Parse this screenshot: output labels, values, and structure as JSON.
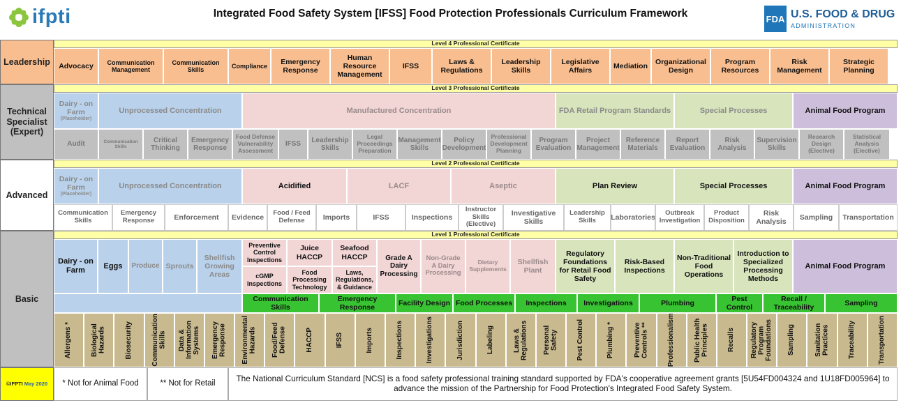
{
  "header": {
    "logo_left": "ifpti",
    "title": "Integrated Food Safety System [IFSS] Food Protection Professionals Curriculum Framework",
    "fda_box": "FDA",
    "fda_line1": "U.S. FOOD & DRUG",
    "fda_line2": "ADMINISTRATION"
  },
  "colors": {
    "leadership": "#f9be90",
    "level_bar": "#ffffa6",
    "label_gray": "#c0c0c0",
    "blue": "#b9d1ea",
    "pink": "#f2d5d5",
    "lightgreen": "#d7e4bc",
    "purple": "#cdbfdb",
    "green": "#38c432",
    "tan": "#c8b98f",
    "footer_yellow": "#ffff00"
  },
  "rows": [
    {
      "label": "Leadership",
      "cert": "Level 4 Professional Certificate"
    },
    {
      "label": "Technical Specialist (Expert)",
      "cert": "Level 3 Professional Certificate"
    },
    {
      "label": "Advanced",
      "cert": "Level 2 Professional Certificate"
    },
    {
      "label": "Basic",
      "cert": "Level 1 Professional Certificate"
    }
  ],
  "leadership_courses": [
    "Advocacy",
    "Communication Management",
    "Communication Skills",
    "Compliance",
    "Emergency Response",
    "Human Resource Management",
    "IFSS",
    "Laws & Regulations",
    "Leadership Skills",
    "Legislative Affairs",
    "Mediation",
    "Organizational Design",
    "Program Resources",
    "Risk Management",
    "Strategic Planning"
  ],
  "tech_concentrations": [
    "Dairy - on Farm",
    "(Placeholder)",
    "Unprocessed Concentration",
    "Manufactured Concentration",
    "FDA Retail Program Standards",
    "Special Processes",
    "Animal Food Program"
  ],
  "tech_courses": [
    "Audit",
    "Communication Skills",
    "Critical Thinking",
    "Emergency Response",
    "Food Defense Vulnerability Assessment",
    "IFSS",
    "Leadership Skills",
    "Legal Proceedings Preparation",
    "Management Skills",
    "Policy Development",
    "Professional Development Planning",
    "Program Evaluation",
    "Project Management",
    "Reference Materials",
    "Report Evaluation",
    "Risk Analysis",
    "Supervision Skills",
    "Research Design (Elective)",
    "Statistical Analysis (Elective)"
  ],
  "adv_concentrations": [
    "Dairy - on Farm",
    "(Placeholder)",
    "Unprocessed Concentration",
    "Acidified",
    "LACF",
    "Aseptic",
    "Plan Review",
    "Special Processes",
    "Animal Food Program"
  ],
  "adv_courses": [
    "Communication Skills",
    "Emergency Response",
    "Enforcement",
    "Evidence",
    "Food / Feed Defense",
    "Imports",
    "IFSS",
    "Inspections",
    "Instructor Skills (Elective)",
    "Investigative Skills",
    "Leadership Skills",
    "Laboratories",
    "Outbreak Investigation",
    "Product Disposition",
    "Risk Analysis",
    "Sampling",
    "Transportation"
  ],
  "basic_concentrations": [
    "Dairy - on Farm",
    "Eggs",
    "Produce",
    "Sprouts",
    "Shellfish Growing Areas",
    "Preventive Control Inspections",
    "cGMP Inspections",
    "Juice HACCP",
    "Food Processing Technology",
    "Seafood HACCP",
    "Laws, Regulations, & Guidance",
    "Grade A Dairy Processing",
    "Non-Grade A Dairy Processing",
    "Dietary Supplements",
    "Shellfish Plant",
    "Regulatory Foundations for Retail Food Safety",
    "Risk-Based Inspections",
    "Non-Traditional Food Operations",
    "Introduction to Specialized Processing Methods",
    "Animal Food Program"
  ],
  "basic_green": [
    "Communication Skills",
    "Emergency Response",
    "Facility Design",
    "Food Processes",
    "Inspections",
    "Investigations",
    "Plumbing",
    "Pest Control",
    "Recall / Traceability",
    "Sampling"
  ],
  "basic_courses": [
    "Allergens *",
    "Biological Hazards",
    "Biosecurity",
    "Communication Skills",
    "Data & Information Systems",
    "Emergency Response",
    "Environmental Hazards",
    "Food/Feed Defense",
    "HACCP",
    "IFSS",
    "Imports",
    "Inspections",
    "Investigations",
    "Jurisdiction",
    "Labeling",
    "Laws & Regulations",
    "Personal Safety",
    "Pest Control",
    "Plumbing *",
    "Preventive Controls **",
    "Professionalism",
    "Public Health Principles",
    "Recalls",
    "Regulatory Program Foundations",
    "Sampling",
    "Sanitation Practices",
    "Traceability",
    "Transportation"
  ],
  "footer": {
    "copyright_prefix": "©IFPTI",
    "copyright_date": "May 2020",
    "note1": "* Not for Animal Food",
    "note2": "** Not for Retail",
    "statement": "The National Curriculum Standard [NCS] is a food safety professional training standard supported by FDA's cooperative agreement grants [5U54FD004324 and 1U18FD005964] to advance the mission of the Partnership for Food Protection's Integrated Food Safety System."
  }
}
